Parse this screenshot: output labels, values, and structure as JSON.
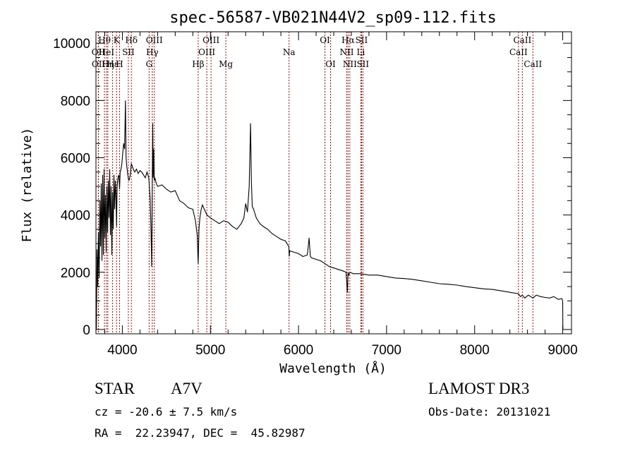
{
  "chart_data": {
    "type": "line",
    "title": "spec-56587-VB021N44V2_sp09-112.fits",
    "xlabel": "Wavelength (Å)",
    "ylabel": "Flux (relative)",
    "xlim": [
      3700,
      9100
    ],
    "ylim": [
      -150,
      10400
    ],
    "xticks": [
      4000,
      5000,
      6000,
      7000,
      8000,
      9000
    ],
    "yticks": [
      0,
      2000,
      4000,
      6000,
      8000,
      10000
    ],
    "xtick_labels": [
      "4000",
      "5000",
      "6000",
      "7000",
      "8000",
      "9000"
    ],
    "ytick_labels": [
      "0",
      "2000",
      "4000",
      "6000",
      "8000",
      "10000"
    ],
    "spectrum": {
      "x": [
        3705,
        3712,
        3720,
        3728,
        3736,
        3745,
        3752,
        3760,
        3768,
        3776,
        3784,
        3792,
        3800,
        3808,
        3816,
        3824,
        3832,
        3840,
        3848,
        3856,
        3864,
        3872,
        3880,
        3888,
        3896,
        3904,
        3912,
        3920,
        3928,
        3934,
        3940,
        3950,
        3960,
        3968,
        3975,
        3985,
        3995,
        4005,
        4015,
        4025,
        4035,
        4042,
        4050,
        4058,
        4066,
        4075,
        4090,
        4101,
        4112,
        4125,
        4140,
        4160,
        4180,
        4200,
        4220,
        4240,
        4260,
        4280,
        4300,
        4315,
        4325,
        4333,
        4340,
        4345,
        4350,
        4356,
        4362,
        4370,
        4385,
        4400,
        4450,
        4500,
        4550,
        4600,
        4650,
        4700,
        4750,
        4800,
        4830,
        4850,
        4861,
        4870,
        4880,
        4895,
        4910,
        4930,
        4960,
        5000,
        5050,
        5100,
        5150,
        5200,
        5250,
        5300,
        5350,
        5380,
        5400,
        5420,
        5440,
        5455,
        5465,
        5475,
        5490,
        5520,
        5560,
        5600,
        5650,
        5700,
        5750,
        5800,
        5850,
        5890,
        5895,
        5900,
        5950,
        6000,
        6050,
        6100,
        6120,
        6135,
        6150,
        6200,
        6250,
        6300,
        6350,
        6400,
        6450,
        6500,
        6540,
        6555,
        6563,
        6570,
        6585,
        6620,
        6700,
        6800,
        6900,
        7000,
        7100,
        7200,
        7300,
        7400,
        7500,
        7600,
        7700,
        7800,
        7900,
        8000,
        8100,
        8200,
        8300,
        8400,
        8498,
        8520,
        8542,
        8570,
        8610,
        8662,
        8700,
        8750,
        8800,
        8850,
        8900,
        8950,
        8990,
        9000,
        9002
      ],
      "y": [
        0,
        2800,
        1500,
        3400,
        1800,
        4500,
        2900,
        5100,
        2400,
        5400,
        2600,
        5600,
        3200,
        4700,
        2700,
        5000,
        3400,
        5200,
        3900,
        5600,
        3300,
        5000,
        2600,
        4800,
        3500,
        5400,
        4200,
        5200,
        4600,
        3600,
        5000,
        5300,
        5400,
        4900,
        5500,
        5600,
        5800,
        6200,
        6500,
        6300,
        8000,
        6000,
        5700,
        5500,
        5300,
        5200,
        5400,
        5800,
        5700,
        5600,
        5500,
        5600,
        5450,
        5550,
        5500,
        5400,
        5300,
        5500,
        5300,
        4600,
        3500,
        2200,
        5400,
        7200,
        5300,
        6300,
        5200,
        5300,
        5100,
        5000,
        5050,
        4900,
        4800,
        4850,
        4500,
        4400,
        4250,
        4200,
        3800,
        3300,
        2300,
        3500,
        3900,
        4200,
        4350,
        4200,
        4000,
        3900,
        3800,
        3700,
        3800,
        3750,
        3600,
        3500,
        3700,
        3900,
        4400,
        4100,
        5000,
        7200,
        5200,
        4300,
        4200,
        3900,
        3700,
        3600,
        3500,
        3350,
        3250,
        3150,
        3100,
        2900,
        2550,
        2750,
        2700,
        2650,
        2550,
        2600,
        3200,
        2550,
        2500,
        2450,
        2400,
        2300,
        2200,
        2150,
        2100,
        2050,
        2000,
        1300,
        2000,
        1900,
        2000,
        1950,
        1950,
        1900,
        1900,
        1850,
        1800,
        1780,
        1750,
        1700,
        1650,
        1600,
        1580,
        1550,
        1500,
        1460,
        1420,
        1400,
        1350,
        1300,
        1250,
        1150,
        1200,
        1100,
        1200,
        1100,
        1200,
        1150,
        1120,
        1100,
        1150,
        1050,
        1080,
        1000,
        0
      ]
    },
    "lines": [
      {
        "name": "Hθ",
        "x": 3797,
        "row": 0
      },
      {
        "name": "OII",
        "x": 3727,
        "row": 1
      },
      {
        "name": "OII",
        "x": 3729,
        "row": 2
      },
      {
        "name": "Hε",
        "x": 3889,
        "row": 2
      },
      {
        "name": "Hη",
        "x": 3835,
        "row": 2
      },
      {
        "name": "HeI",
        "x": 3820,
        "row": 1
      },
      {
        "name": "K",
        "x": 3934,
        "row": 0
      },
      {
        "name": "SII",
        "x": 4068,
        "row": 1
      },
      {
        "name": "H",
        "x": 3968,
        "row": 2
      },
      {
        "name": "Hδ",
        "x": 4102,
        "row": 0
      },
      {
        "name": "OIII",
        "x": 4363,
        "row": 0
      },
      {
        "name": "Hγ",
        "x": 4340,
        "row": 1
      },
      {
        "name": "G",
        "x": 4304,
        "row": 2
      },
      {
        "name": "Hβ",
        "x": 4861,
        "row": 2
      },
      {
        "name": "OIII",
        "x": 4959,
        "row": 1
      },
      {
        "name": "OIII",
        "x": 5007,
        "row": 0
      },
      {
        "name": "Mg",
        "x": 5175,
        "row": 2
      },
      {
        "name": "Na",
        "x": 5893,
        "row": 1
      },
      {
        "name": "OI",
        "x": 6300,
        "row": 0
      },
      {
        "name": "OI",
        "x": 6364,
        "row": 2
      },
      {
        "name": "Hα",
        "x": 6563,
        "row": 0
      },
      {
        "name": "NII",
        "x": 6548,
        "row": 1
      },
      {
        "name": "NII",
        "x": 6583,
        "row": 2
      },
      {
        "name": "SII",
        "x": 6716,
        "row": 0
      },
      {
        "name": "Li",
        "x": 6708,
        "row": 1
      },
      {
        "name": "SII",
        "x": 6731,
        "row": 2
      },
      {
        "name": "CaII",
        "x": 8542,
        "row": 0
      },
      {
        "name": "CaII",
        "x": 8498,
        "row": 1
      },
      {
        "name": "CaII",
        "x": 8662,
        "row": 2
      }
    ]
  },
  "info": {
    "object_class": "STAR",
    "subclass": "A7V",
    "survey": "LAMOST DR3",
    "redshift": "cz = -20.6 ± 7.5 km/s",
    "obs_date": "Obs-Date: 20131021",
    "coords": "RA =  22.23947, DEC =  45.82987"
  },
  "colors": {
    "line_marker": "#cc0000",
    "spectrum": "#000000",
    "background": "#ffffff"
  }
}
